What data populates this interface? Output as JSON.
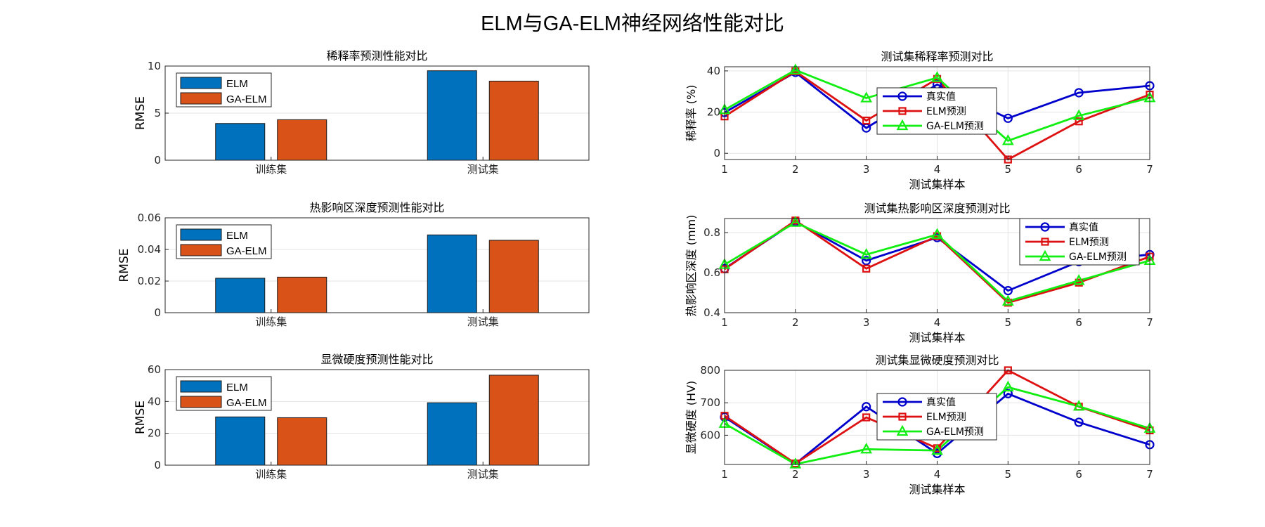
{
  "title": "ELM与GA-ELM神经网络性能对比",
  "colors": {
    "elm_bar": "#0072BD",
    "gaelm_bar": "#D95319",
    "true_line": "#0000CC",
    "elm_line": "#DD1111",
    "gaelm_line": "#11EE11"
  },
  "chart_data": [
    {
      "type": "bar",
      "title": "稀释率预测性能对比",
      "ylabel": "RMSE",
      "categories": [
        "训练集",
        "测试集"
      ],
      "ylim": [
        0,
        10
      ],
      "yticks": [
        0,
        5,
        10
      ],
      "legend": "top-left",
      "grid": true,
      "series": [
        {
          "name": "ELM",
          "values": [
            3.9,
            9.5
          ]
        },
        {
          "name": "GA-ELM",
          "values": [
            4.3,
            8.4
          ]
        }
      ]
    },
    {
      "type": "bar",
      "title": "热影响区深度预测性能对比",
      "ylabel": "RMSE",
      "categories": [
        "训练集",
        "测试集"
      ],
      "ylim": [
        0,
        0.06
      ],
      "yticks": [
        0,
        0.02,
        0.04,
        0.06
      ],
      "legend": "top-left",
      "grid": true,
      "series": [
        {
          "name": "ELM",
          "values": [
            0.0218,
            0.0492
          ]
        },
        {
          "name": "GA-ELM",
          "values": [
            0.0225,
            0.0458
          ]
        }
      ]
    },
    {
      "type": "bar",
      "title": "显微硬度预测性能对比",
      "ylabel": "RMSE",
      "categories": [
        "训练集",
        "测试集"
      ],
      "ylim": [
        0,
        60
      ],
      "yticks": [
        0,
        20,
        40,
        60
      ],
      "legend": "top-left",
      "grid": true,
      "series": [
        {
          "name": "ELM",
          "values": [
            30.3,
            39.2
          ]
        },
        {
          "name": "GA-ELM",
          "values": [
            29.8,
            56.5
          ]
        }
      ]
    },
    {
      "type": "line",
      "title": "测试集稀释率预测对比",
      "xlabel": "测试集样本",
      "ylabel": "稀释率 (%)",
      "x": [
        1,
        2,
        3,
        4,
        5,
        6,
        7
      ],
      "xlim": [
        1,
        7
      ],
      "ylim": [
        -3,
        42
      ],
      "yticks": [
        0,
        20,
        40
      ],
      "legend": "center",
      "grid": true,
      "series": [
        {
          "name": "真实值",
          "marker": "circle",
          "values": [
            19.8,
            39.3,
            12.3,
            33.4,
            17.0,
            29.4,
            32.8
          ]
        },
        {
          "name": "ELM预测",
          "marker": "square",
          "values": [
            17.9,
            39.8,
            15.9,
            36.1,
            -3.0,
            15.5,
            28.5
          ]
        },
        {
          "name": "GA-ELM预测",
          "marker": "triangle",
          "values": [
            21.1,
            40.4,
            26.8,
            36.7,
            6.1,
            18.2,
            26.9
          ]
        }
      ]
    },
    {
      "type": "line",
      "title": "测试集热影响区深度预测对比",
      "xlabel": "测试集样本",
      "ylabel": "热影响区深度 (mm)",
      "x": [
        1,
        2,
        3,
        4,
        5,
        6,
        7
      ],
      "xlim": [
        1,
        7
      ],
      "ylim": [
        0.4,
        0.87
      ],
      "yticks": [
        0.4,
        0.6,
        0.8
      ],
      "legend": "top-right",
      "grid": true,
      "series": [
        {
          "name": "真实值",
          "marker": "circle",
          "values": [
            0.62,
            0.855,
            0.66,
            0.775,
            0.51,
            0.655,
            0.69
          ]
        },
        {
          "name": "ELM预测",
          "marker": "square",
          "values": [
            0.617,
            0.86,
            0.62,
            0.782,
            0.45,
            0.55,
            0.68
          ]
        },
        {
          "name": "GA-ELM预测",
          "marker": "triangle",
          "values": [
            0.64,
            0.85,
            0.69,
            0.79,
            0.457,
            0.56,
            0.66
          ]
        }
      ]
    },
    {
      "type": "line",
      "title": "测试集显微硬度预测对比",
      "xlabel": "测试集样本",
      "ylabel": "显微硬度 (HV)",
      "x": [
        1,
        2,
        3,
        4,
        5,
        6,
        7
      ],
      "xlim": [
        1,
        7
      ],
      "ylim": [
        510,
        800
      ],
      "yticks": [
        600,
        700,
        800
      ],
      "legend": "center",
      "grid": true,
      "series": [
        {
          "name": "真实值",
          "marker": "circle",
          "values": [
            656,
            512,
            688,
            544,
            728,
            640,
            571
          ]
        },
        {
          "name": "ELM预测",
          "marker": "square",
          "values": [
            660,
            513,
            655,
            560,
            800,
            688,
            615
          ]
        },
        {
          "name": "GA-ELM预测",
          "marker": "triangle",
          "values": [
            636,
            511,
            557,
            553,
            748,
            689,
            621
          ]
        }
      ]
    }
  ]
}
